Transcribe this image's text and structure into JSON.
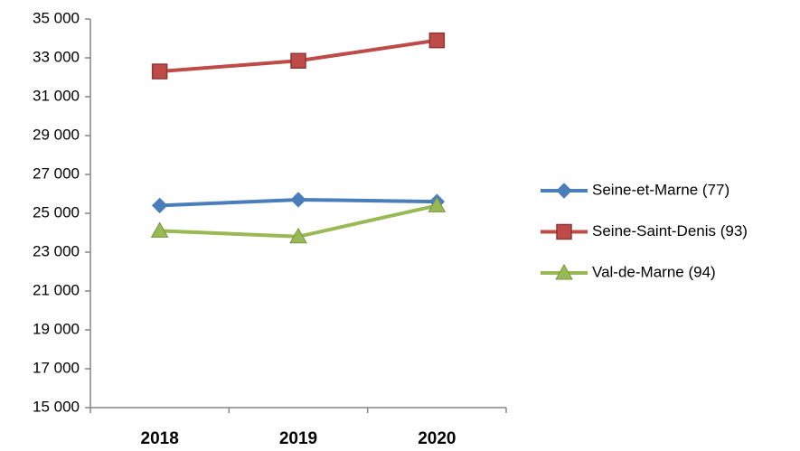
{
  "chart_data": {
    "type": "line",
    "categories": [
      "2018",
      "2019",
      "2020"
    ],
    "series": [
      {
        "name": "Seine-et-Marne (77)",
        "color": "#4a7ebb",
        "marker": "diamond",
        "values": [
          25400,
          25700,
          25600
        ]
      },
      {
        "name": "Seine-Saint-Denis (93)",
        "color": "#be4b48",
        "marker": "square",
        "values": [
          32300,
          32850,
          33900
        ]
      },
      {
        "name": "Val-de-Marne (94)",
        "color": "#98b954",
        "marker": "triangle",
        "values": [
          24100,
          23800,
          25400
        ]
      }
    ],
    "ylim": [
      15000,
      35000
    ],
    "yticks": [
      {
        "value": 15000,
        "label": "15 000"
      },
      {
        "value": 17000,
        "label": "17 000"
      },
      {
        "value": 19000,
        "label": "19 000"
      },
      {
        "value": 21000,
        "label": "21 000"
      },
      {
        "value": 23000,
        "label": "23 000"
      },
      {
        "value": 25000,
        "label": "25 000"
      },
      {
        "value": 27000,
        "label": "27 000"
      },
      {
        "value": 29000,
        "label": "29 000"
      },
      {
        "value": 31000,
        "label": "31 000"
      },
      {
        "value": 33000,
        "label": "33 000"
      },
      {
        "value": 35000,
        "label": "35 000"
      }
    ],
    "grid": false,
    "legend": "right"
  }
}
